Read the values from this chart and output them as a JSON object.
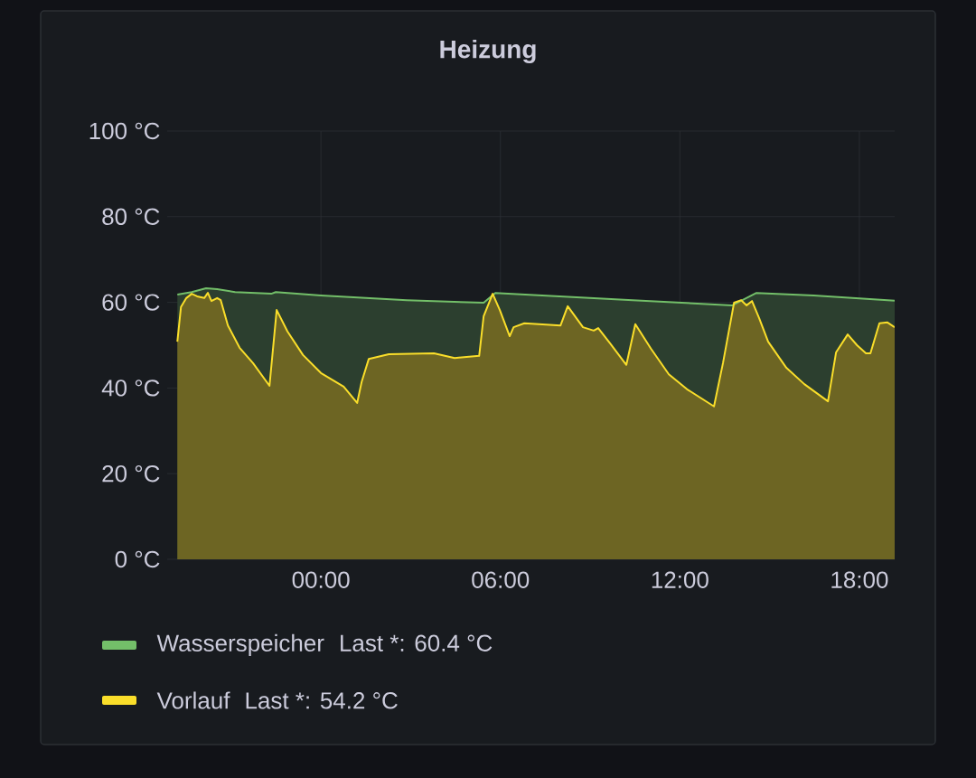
{
  "chart_data": {
    "type": "area",
    "title": "Heizung",
    "xlim": [
      -5.14,
      19.18
    ],
    "ylim": [
      0,
      100
    ],
    "xticks": [
      {
        "value": 0,
        "label": "00:00"
      },
      {
        "value": 6,
        "label": "06:00"
      },
      {
        "value": 12,
        "label": "12:00"
      },
      {
        "value": 18,
        "label": "18:00"
      }
    ],
    "yticks": [
      {
        "value": 0,
        "label": "0 °C"
      },
      {
        "value": 20,
        "label": "20 °C"
      },
      {
        "value": 40,
        "label": "40 °C"
      },
      {
        "value": 60,
        "label": "60 °C"
      },
      {
        "value": 80,
        "label": "80 °C"
      },
      {
        "value": 100,
        "label": "100 °C"
      }
    ],
    "grid": true,
    "legend": "bottom",
    "annotations": [
      "Last *: 60.4 °C",
      "Last *: 54.2 °C"
    ],
    "series": [
      {
        "name": "Wasserspeicher",
        "color": "#73bf69",
        "x": [
          -4.8,
          -4.32,
          -3.84,
          -3.47,
          -2.87,
          -1.66,
          -1.51,
          0.0,
          2.87,
          5.44,
          5.83,
          7.4,
          10.42,
          13.75,
          14.56,
          16.47,
          19.18
        ],
        "values": [
          61.8,
          62.4,
          63.3,
          63.1,
          62.4,
          62.0,
          62.4,
          61.6,
          60.5,
          59.9,
          62.2,
          61.6,
          60.5,
          59.3,
          62.2,
          61.6,
          60.4
        ]
      },
      {
        "name": "Vorlauf",
        "color": "#fade2a",
        "x": [
          -4.8,
          -4.68,
          -4.5,
          -4.32,
          -4.14,
          -3.9,
          -3.78,
          -3.66,
          -3.47,
          -3.35,
          -3.11,
          -2.72,
          -2.27,
          -1.72,
          -1.48,
          -1.12,
          -0.6,
          0.0,
          0.76,
          1.21,
          1.36,
          1.6,
          2.27,
          3.78,
          4.47,
          5.29,
          5.44,
          5.74,
          5.98,
          6.31,
          6.44,
          6.8,
          8.01,
          8.25,
          8.76,
          9.12,
          9.27,
          9.67,
          10.21,
          10.51,
          11.03,
          11.63,
          12.24,
          13.14,
          13.44,
          13.81,
          14.05,
          14.23,
          14.41,
          14.65,
          14.95,
          15.56,
          16.16,
          16.95,
          17.22,
          17.61,
          17.92,
          18.22,
          18.37,
          18.67,
          18.94,
          19.18
        ],
        "values": [
          50.8,
          58.9,
          61.0,
          62.0,
          61.4,
          61.0,
          62.2,
          60.3,
          61.0,
          60.5,
          54.6,
          49.4,
          45.8,
          40.5,
          58.2,
          53.2,
          47.7,
          43.5,
          40.3,
          36.5,
          41.4,
          46.8,
          47.9,
          48.1,
          47.0,
          47.5,
          56.8,
          62.0,
          58.2,
          52.1,
          54.2,
          55.1,
          54.6,
          59.1,
          54.2,
          53.4,
          54.0,
          50.4,
          45.4,
          54.9,
          49.2,
          43.2,
          39.7,
          35.7,
          45.8,
          59.9,
          60.5,
          59.3,
          60.3,
          56.3,
          50.8,
          44.7,
          40.9,
          36.9,
          48.3,
          52.5,
          50.0,
          48.1,
          48.1,
          55.1,
          55.3,
          54.2
        ]
      }
    ]
  }
}
